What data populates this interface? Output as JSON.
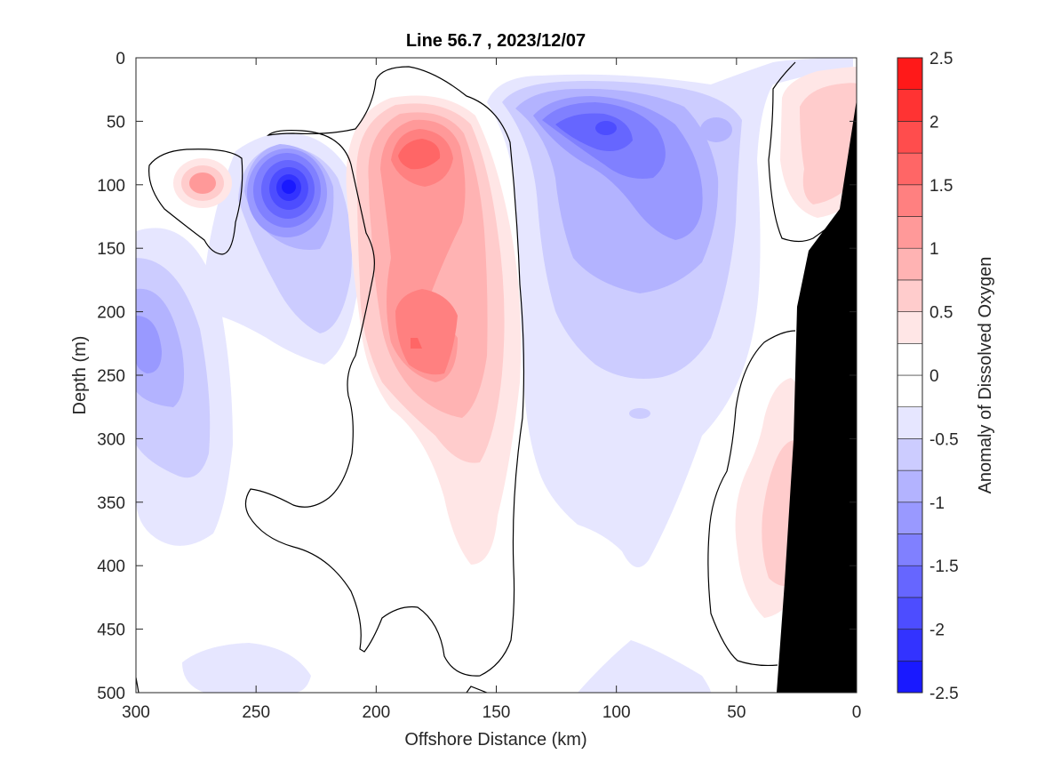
{
  "chart_data": {
    "type": "contour",
    "title": "Line 56.7 , 2023/12/07",
    "xlabel": "Offshore Distance (km)",
    "ylabel": "Depth (m)",
    "xlim": [
      300,
      0
    ],
    "ylim": [
      500,
      0
    ],
    "x_ticks": [
      300,
      250,
      200,
      150,
      100,
      50,
      0
    ],
    "y_ticks": [
      0,
      50,
      100,
      150,
      200,
      250,
      300,
      350,
      400,
      450,
      500
    ],
    "colorbar": {
      "label": "Anomaly of Dissolved Oxygen",
      "range": [
        -2.5,
        2.5
      ],
      "levels": [
        -2.5,
        -2.25,
        -2,
        -1.75,
        -1.5,
        -1.25,
        -1,
        -0.75,
        -0.5,
        -0.25,
        0,
        0.25,
        0.5,
        0.75,
        1,
        1.25,
        1.5,
        1.75,
        2,
        2.25,
        2.5
      ],
      "tick_values": [
        2.5,
        2,
        1.5,
        1,
        0.5,
        0,
        -0.5,
        -1,
        -1.5,
        -2,
        -2.5
      ],
      "tick_labels": [
        "2.5",
        "2",
        "1.5",
        "1",
        "0.5",
        "0",
        "-0.5",
        "-1",
        "-1.5",
        "-2",
        "-2.5"
      ],
      "colors": [
        "#0000ff",
        "#1919ff",
        "#3333ff",
        "#4d4dff",
        "#6666ff",
        "#8080ff",
        "#9999ff",
        "#b3b3ff",
        "#ccccff",
        "#e6e6ff",
        "#ffffff",
        "#ffffff",
        "#ffe6e6",
        "#ffcccc",
        "#ffb3b3",
        "#ff9999",
        "#ff8080",
        "#ff6666",
        "#ff4d4d",
        "#ff3333",
        "#ff1919",
        "#ff0000"
      ]
    },
    "features": [
      {
        "name": "positive anomaly core",
        "x_km": 175,
        "depth_m": 75,
        "peak": 1.5
      },
      {
        "name": "positive anomaly core",
        "x_km": 180,
        "depth_m": 225,
        "peak": 1.3
      },
      {
        "name": "positive anomaly",
        "x_km": 270,
        "depth_m": 100,
        "peak": 1.0
      },
      {
        "name": "negative anomaly core",
        "x_km": 235,
        "depth_m": 100,
        "peak": -2.3
      },
      {
        "name": "negative anomaly core",
        "x_km": 108,
        "depth_m": 58,
        "peak": -1.6
      },
      {
        "name": "negative anomaly",
        "x_km": 290,
        "depth_m": 230,
        "peak": -1.0
      },
      {
        "name": "nearshore positive",
        "x_km": 15,
        "depth_m": 100,
        "peak": 0.8
      },
      {
        "name": "nearshore positive",
        "x_km": 35,
        "depth_m": 370,
        "peak": 0.6
      },
      {
        "name": "bathymetry",
        "note": "black seafloor mask near coast"
      }
    ]
  }
}
